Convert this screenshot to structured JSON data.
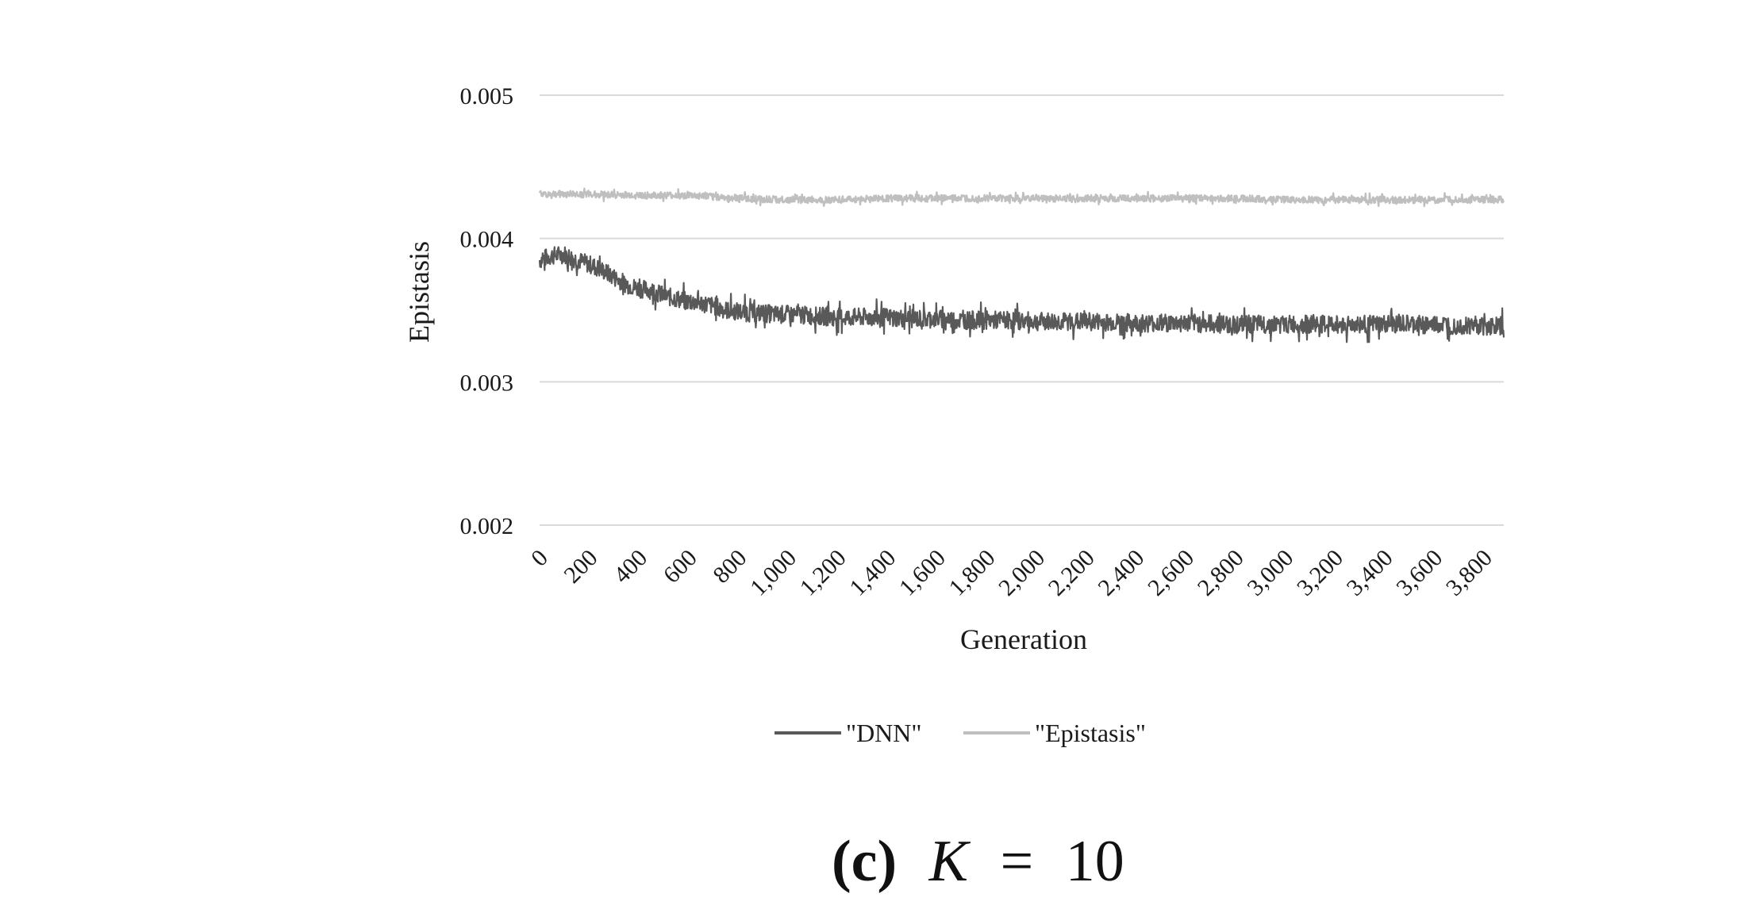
{
  "chart_data": {
    "type": "line",
    "xlabel": "Generation",
    "ylabel": "Epistasis",
    "xlim": [
      0,
      3880
    ],
    "ylim": [
      0.002,
      0.005
    ],
    "x_ticks": [
      "0",
      "200",
      "400",
      "600",
      "800",
      "1,000",
      "1,200",
      "1,400",
      "1,600",
      "1,800",
      "2,000",
      "2,200",
      "2,400",
      "2,600",
      "2,800",
      "3,000",
      "3,200",
      "3,400",
      "3,600",
      "3,800"
    ],
    "y_ticks": [
      "0.002",
      "0.003",
      "0.004",
      "0.005"
    ],
    "grid": "horizontal",
    "legend_position": "bottom",
    "series": [
      {
        "name": "\"DNN\"",
        "color": "#595959",
        "x": [
          0,
          50,
          100,
          150,
          200,
          250,
          300,
          350,
          400,
          450,
          500,
          550,
          600,
          650,
          700,
          750,
          800,
          850,
          900,
          950,
          1000,
          1100,
          1200,
          1300,
          1400,
          1500,
          1600,
          1700,
          1800,
          1900,
          2000,
          2200,
          2400,
          2600,
          2800,
          3000,
          3200,
          3400,
          3600,
          3800,
          3880
        ],
        "values": [
          0.00385,
          0.00388,
          0.00389,
          0.00385,
          0.00382,
          0.00378,
          0.00373,
          0.00368,
          0.00365,
          0.00364,
          0.0036,
          0.00358,
          0.00356,
          0.00355,
          0.00353,
          0.0035,
          0.00349,
          0.00348,
          0.00348,
          0.00347,
          0.00347,
          0.00346,
          0.00345,
          0.00345,
          0.00345,
          0.00344,
          0.00344,
          0.00343,
          0.00343,
          0.00343,
          0.00342,
          0.00342,
          0.00341,
          0.00341,
          0.0034,
          0.0034,
          0.0034,
          0.0034,
          0.0034,
          0.00339,
          0.00339
        ],
        "noise_amplitude": 8e-05
      },
      {
        "name": "\"Epistasis\"",
        "color": "#bfbfbf",
        "x": [
          0,
          200,
          400,
          600,
          800,
          1000,
          1200,
          1400,
          1600,
          1800,
          2000,
          2200,
          2400,
          2600,
          2800,
          3000,
          3200,
          3400,
          3600,
          3800,
          3880
        ],
        "values": [
          0.00431,
          0.00431,
          0.0043,
          0.0043,
          0.00428,
          0.00427,
          0.00427,
          0.00428,
          0.00428,
          0.00428,
          0.00428,
          0.00428,
          0.00428,
          0.00428,
          0.00428,
          0.00427,
          0.00427,
          0.00427,
          0.00427,
          0.00427,
          0.00427
        ],
        "noise_amplitude": 3e-05
      }
    ]
  },
  "caption": {
    "label": "(c)",
    "variable": "K",
    "equals": "=",
    "value": "10"
  }
}
